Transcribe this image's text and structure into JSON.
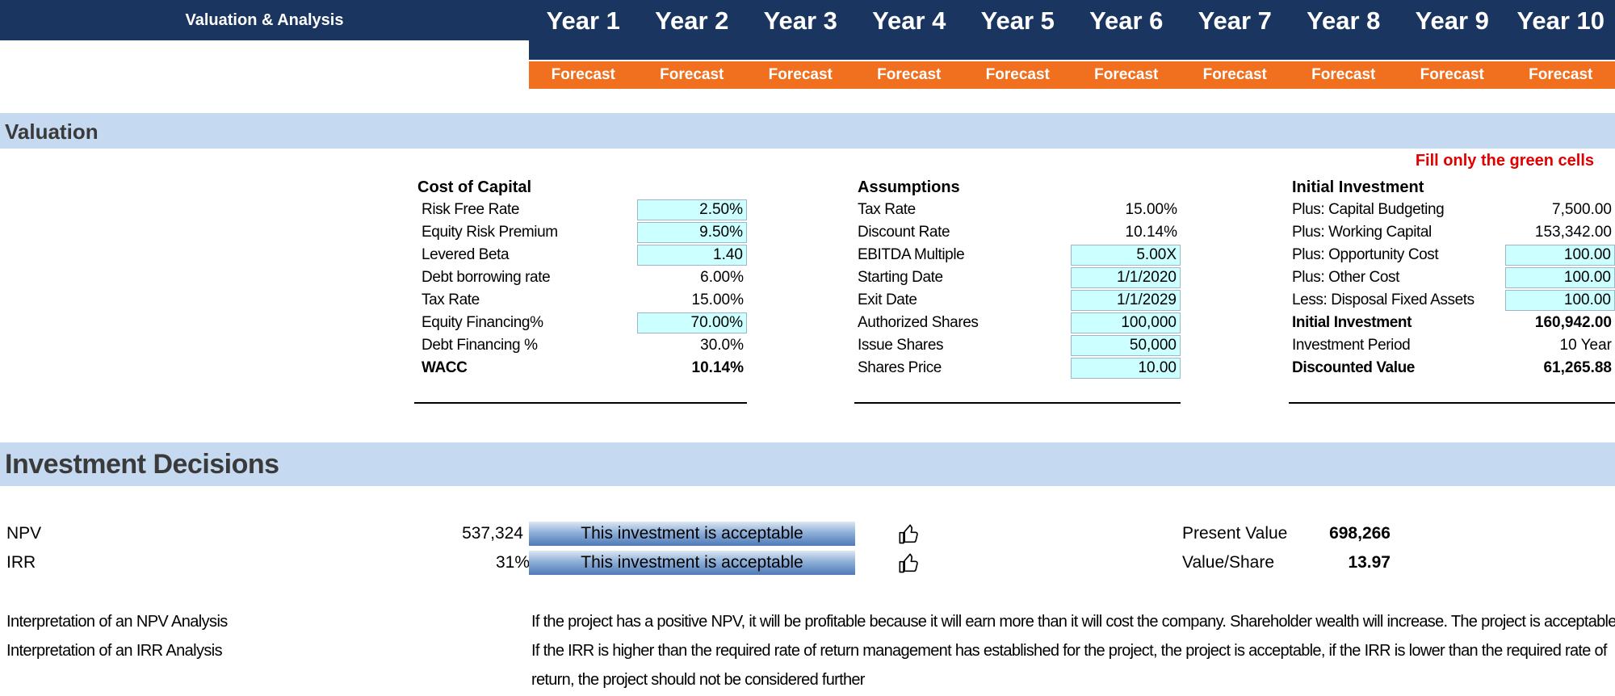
{
  "header": {
    "title": "Valuation & Analysis",
    "years": [
      "Year 1",
      "Year 2",
      "Year 3",
      "Year 4",
      "Year 5",
      "Year 6",
      "Year 7",
      "Year 8",
      "Year 9",
      "Year 10"
    ],
    "period_label": "Forecast"
  },
  "sections": {
    "valuation": "Valuation",
    "investment_decisions": "Investment Decisions"
  },
  "note": "Fill only the green cells",
  "cost_of_capital": {
    "title": "Cost of Capital",
    "rows": [
      {
        "label": "Risk Free Rate",
        "value": "2.50%",
        "input": true
      },
      {
        "label": "Equity Risk Premium",
        "value": "9.50%",
        "input": true
      },
      {
        "label": "Levered Beta",
        "value": "1.40",
        "input": true
      },
      {
        "label": "Debt borrowing rate",
        "value": "6.00%",
        "input": false
      },
      {
        "label": "Tax Rate",
        "value": "15.00%",
        "input": false
      },
      {
        "label": "Equity Financing%",
        "value": "70.00%",
        "input": true
      },
      {
        "label": "Debt Financing %",
        "value": "30.0%",
        "input": false
      },
      {
        "label": "WACC",
        "value": "10.14%",
        "input": false,
        "bold": true
      }
    ]
  },
  "assumptions": {
    "title": "Assumptions",
    "rows": [
      {
        "label": "Tax Rate",
        "value": "15.00%",
        "input": false
      },
      {
        "label": "Discount Rate",
        "value": "10.14%",
        "input": false
      },
      {
        "label": "EBITDA Multiple",
        "value": "5.00X",
        "input": true
      },
      {
        "label": "Starting Date",
        "value": "1/1/2020",
        "input": true
      },
      {
        "label": "Exit Date",
        "value": "1/1/2029",
        "input": true
      },
      {
        "label": "Authorized Shares",
        "value": "100,000",
        "input": true
      },
      {
        "label": "Issue Shares",
        "value": "50,000",
        "input": true
      },
      {
        "label": "Shares Price",
        "value": "10.00",
        "input": true
      }
    ]
  },
  "initial_investment": {
    "title": "Initial Investment",
    "rows": [
      {
        "label": "Plus: Capital Budgeting",
        "value": "7,500.00",
        "input": false
      },
      {
        "label": "Plus: Working Capital",
        "value": "153,342.00",
        "input": false
      },
      {
        "label": "Plus: Opportunity Cost",
        "value": "100.00",
        "input": true
      },
      {
        "label": "Plus: Other Cost",
        "value": "100.00",
        "input": true
      },
      {
        "label": "Less: Disposal Fixed Assets",
        "value": "100.00",
        "input": true
      },
      {
        "label": "Initial Investment",
        "value": "160,942.00",
        "input": false,
        "bold": true
      },
      {
        "label": "Investment Period",
        "value": "10  Year",
        "input": false
      },
      {
        "label": "Discounted Value",
        "value": "61,265.88",
        "input": false,
        "bold": true
      }
    ]
  },
  "decisions": {
    "npv": {
      "label": "NPV",
      "value": "537,324",
      "verdict": "This investment is acceptable"
    },
    "irr": {
      "label": "IRR",
      "value": "31%",
      "verdict": "This investment is acceptable"
    },
    "present_value": {
      "label": "Present Value",
      "value": "698,266"
    },
    "value_per_share": {
      "label": "Value/Share",
      "value": "13.97"
    },
    "thumb_icon": "thumbs-up-icon"
  },
  "interpretation": {
    "npv_label": "Interpretation of an NPV Analysis",
    "npv_text": "If the project has a positive NPV, it will be profitable because it will earn more than it will cost the company. Shareholder wealth will increase. The project is acceptable",
    "irr_label": "Interpretation of an IRR Analysis",
    "irr_text_line1": "If the IRR is higher than the required rate of return management has established for the project, the project is acceptable, if the IRR is lower than the required rate of",
    "irr_text_line2": "return, the project should not be considered further"
  },
  "colors": {
    "header_navy": "#1a3560",
    "forecast_orange": "#f07020",
    "section_band": "#c5d9f1",
    "input_cell": "#ccffff",
    "note_red": "#e00000"
  }
}
